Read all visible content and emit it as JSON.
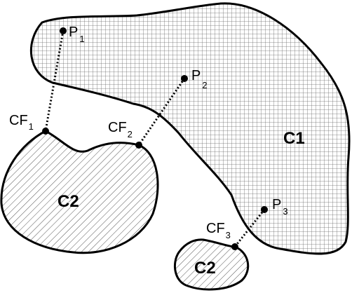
{
  "regions": {
    "c1": {
      "label": "C1"
    },
    "c2_left": {
      "label": "C2"
    },
    "c2_bottom": {
      "label": "C2"
    }
  },
  "points": [
    {
      "main": "P",
      "sub": "1"
    },
    {
      "main": "P",
      "sub": "2"
    },
    {
      "main": "P",
      "sub": "3"
    }
  ],
  "contact_frames": [
    {
      "main": "CF",
      "sub": "1"
    },
    {
      "main": "CF",
      "sub": "2"
    },
    {
      "main": "CF",
      "sub": "3"
    }
  ],
  "colors": {
    "stroke": "#000000",
    "background": "#ffffff",
    "grid": "#555555"
  }
}
